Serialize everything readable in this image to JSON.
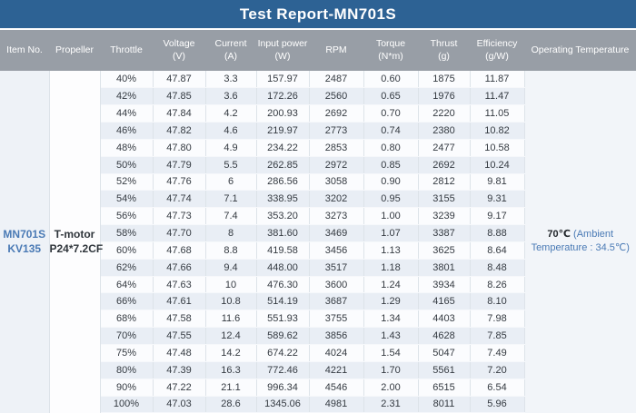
{
  "title": "Test Report-MN701S",
  "colors": {
    "title_bg": "#2d6294",
    "header_bg": "#989ea6",
    "row_light": "#fbfcfe",
    "row_dark": "#e9eef5",
    "accent_blue_text": "#4a7ab5"
  },
  "table": {
    "headers": [
      {
        "key": "item_no",
        "label": "Item No.",
        "unit": ""
      },
      {
        "key": "propeller",
        "label": "Propeller",
        "unit": ""
      },
      {
        "key": "throttle",
        "label": "Throttle",
        "unit": ""
      },
      {
        "key": "voltage",
        "label": "Voltage",
        "unit": "(V)"
      },
      {
        "key": "current",
        "label": "Current",
        "unit": "(A)"
      },
      {
        "key": "input_power",
        "label": "Input power",
        "unit": "(W)"
      },
      {
        "key": "rpm",
        "label": "RPM",
        "unit": ""
      },
      {
        "key": "torque",
        "label": "Torque",
        "unit": "(N*m)"
      },
      {
        "key": "thrust",
        "label": "Thrust",
        "unit": "(g)"
      },
      {
        "key": "efficiency",
        "label": "Efficiency",
        "unit": "(g/W)"
      },
      {
        "key": "op_temp",
        "label": "Operating Temperature",
        "unit": ""
      }
    ],
    "item_no": {
      "line1": "MN701S",
      "line2": "KV135"
    },
    "propeller": {
      "line1": "T-motor",
      "line2": "P24*7.2CF"
    },
    "operating_temperature": {
      "bold": "70℃",
      "rest": "(Ambient Temperature : 34.5℃)"
    },
    "rows": [
      {
        "throttle": "40%",
        "voltage": "47.87",
        "current": "3.3",
        "input_power": "157.97",
        "rpm": "2487",
        "torque": "0.60",
        "thrust": "1875",
        "efficiency": "11.87"
      },
      {
        "throttle": "42%",
        "voltage": "47.85",
        "current": "3.6",
        "input_power": "172.26",
        "rpm": "2560",
        "torque": "0.65",
        "thrust": "1976",
        "efficiency": "11.47"
      },
      {
        "throttle": "44%",
        "voltage": "47.84",
        "current": "4.2",
        "input_power": "200.93",
        "rpm": "2692",
        "torque": "0.70",
        "thrust": "2220",
        "efficiency": "11.05"
      },
      {
        "throttle": "46%",
        "voltage": "47.82",
        "current": "4.6",
        "input_power": "219.97",
        "rpm": "2773",
        "torque": "0.74",
        "thrust": "2380",
        "efficiency": "10.82"
      },
      {
        "throttle": "48%",
        "voltage": "47.80",
        "current": "4.9",
        "input_power": "234.22",
        "rpm": "2853",
        "torque": "0.80",
        "thrust": "2477",
        "efficiency": "10.58"
      },
      {
        "throttle": "50%",
        "voltage": "47.79",
        "current": "5.5",
        "input_power": "262.85",
        "rpm": "2972",
        "torque": "0.85",
        "thrust": "2692",
        "efficiency": "10.24"
      },
      {
        "throttle": "52%",
        "voltage": "47.76",
        "current": "6",
        "input_power": "286.56",
        "rpm": "3058",
        "torque": "0.90",
        "thrust": "2812",
        "efficiency": "9.81"
      },
      {
        "throttle": "54%",
        "voltage": "47.74",
        "current": "7.1",
        "input_power": "338.95",
        "rpm": "3202",
        "torque": "0.95",
        "thrust": "3155",
        "efficiency": "9.31"
      },
      {
        "throttle": "56%",
        "voltage": "47.73",
        "current": "7.4",
        "input_power": "353.20",
        "rpm": "3273",
        "torque": "1.00",
        "thrust": "3239",
        "efficiency": "9.17"
      },
      {
        "throttle": "58%",
        "voltage": "47.70",
        "current": "8",
        "input_power": "381.60",
        "rpm": "3469",
        "torque": "1.07",
        "thrust": "3387",
        "efficiency": "8.88"
      },
      {
        "throttle": "60%",
        "voltage": "47.68",
        "current": "8.8",
        "input_power": "419.58",
        "rpm": "3456",
        "torque": "1.13",
        "thrust": "3625",
        "efficiency": "8.64"
      },
      {
        "throttle": "62%",
        "voltage": "47.66",
        "current": "9.4",
        "input_power": "448.00",
        "rpm": "3517",
        "torque": "1.18",
        "thrust": "3801",
        "efficiency": "8.48"
      },
      {
        "throttle": "64%",
        "voltage": "47.63",
        "current": "10",
        "input_power": "476.30",
        "rpm": "3600",
        "torque": "1.24",
        "thrust": "3934",
        "efficiency": "8.26"
      },
      {
        "throttle": "66%",
        "voltage": "47.61",
        "current": "10.8",
        "input_power": "514.19",
        "rpm": "3687",
        "torque": "1.29",
        "thrust": "4165",
        "efficiency": "8.10"
      },
      {
        "throttle": "68%",
        "voltage": "47.58",
        "current": "11.6",
        "input_power": "551.93",
        "rpm": "3755",
        "torque": "1.34",
        "thrust": "4403",
        "efficiency": "7.98"
      },
      {
        "throttle": "70%",
        "voltage": "47.55",
        "current": "12.4",
        "input_power": "589.62",
        "rpm": "3856",
        "torque": "1.43",
        "thrust": "4628",
        "efficiency": "7.85"
      },
      {
        "throttle": "75%",
        "voltage": "47.48",
        "current": "14.2",
        "input_power": "674.22",
        "rpm": "4024",
        "torque": "1.54",
        "thrust": "5047",
        "efficiency": "7.49"
      },
      {
        "throttle": "80%",
        "voltage": "47.39",
        "current": "16.3",
        "input_power": "772.46",
        "rpm": "4221",
        "torque": "1.70",
        "thrust": "5561",
        "efficiency": "7.20"
      },
      {
        "throttle": "90%",
        "voltage": "47.22",
        "current": "21.1",
        "input_power": "996.34",
        "rpm": "4546",
        "torque": "2.00",
        "thrust": "6515",
        "efficiency": "6.54"
      },
      {
        "throttle": "100%",
        "voltage": "47.03",
        "current": "28.6",
        "input_power": "1345.06",
        "rpm": "4981",
        "torque": "2.31",
        "thrust": "8011",
        "efficiency": "5.96"
      }
    ]
  }
}
